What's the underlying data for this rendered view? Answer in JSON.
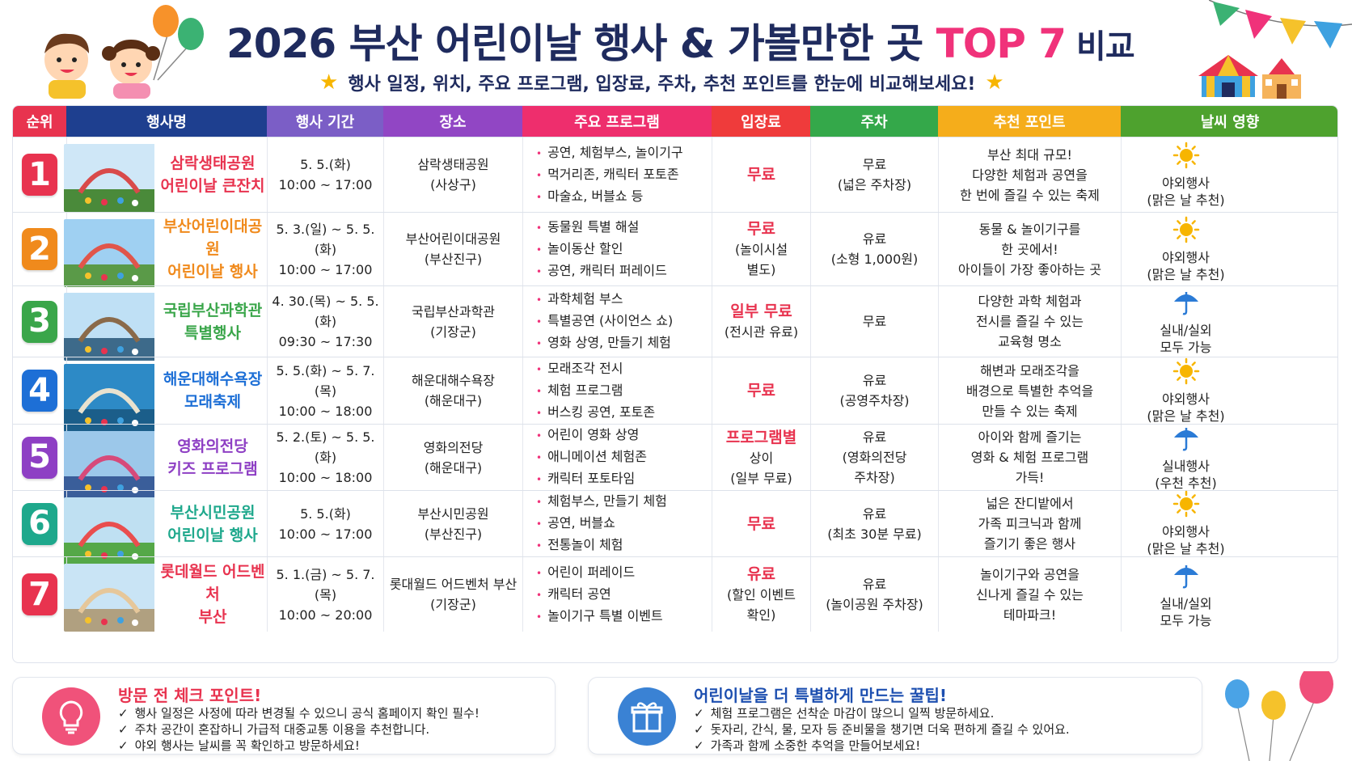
{
  "header": {
    "title_main": "2026 부산 어린이날 행사 & 가볼만한 곳 ",
    "title_accent": "TOP 7",
    "title_tail": " 비교",
    "subtitle": "행사 일정, 위치, 주요 프로그램, 입장료, 주차, 추천 포인트를 한눈에 비교해보세요!",
    "star_icon": "star-icon"
  },
  "columns": [
    {
      "label": "순위",
      "color": "#e8334f"
    },
    {
      "label": "행사명",
      "color": "#1e3f8f"
    },
    {
      "label": "행사 기간",
      "color": "#7b5ec6"
    },
    {
      "label": "장소",
      "color": "#9146c4"
    },
    {
      "label": "주요 프로그램",
      "color": "#ee2e6d"
    },
    {
      "label": "입장료",
      "color": "#ef3b3b"
    },
    {
      "label": "주차",
      "color": "#34a84a"
    },
    {
      "label": "추천 포인트",
      "color": "#f5ad1b"
    },
    {
      "label": "날씨 영향",
      "color": "#4ea22e"
    }
  ],
  "rows": [
    {
      "rank": "1",
      "rank_color": "#e8334f",
      "name1": "삼락생태공원",
      "name2": "어린이날 큰잔치",
      "name_color": "#e8334f",
      "period1": "5. 5.(화)",
      "period2": "10:00 ~ 17:00",
      "place1": "삼락생태공원",
      "place2": "(사상구)",
      "programs": [
        "공연, 체험부스, 놀이기구",
        "먹거리존, 캐릭터 포토존",
        "마술쇼, 버블쇼 등"
      ],
      "fee1": "무료",
      "fee2": "",
      "fee3": "",
      "parking1": "무료",
      "parking2": "(넓은 주차장)",
      "parking3": "",
      "point1": "부산 최대 규모!",
      "point2": "다양한 체험과 공연을",
      "point3": "한 번에 즐길 수 있는 축제",
      "weather_icon": "sun-icon",
      "weather1": "야외행사",
      "weather2": "(맑은 날 추천)"
    },
    {
      "rank": "2",
      "rank_color": "#f08a1c",
      "name1": "부산어린이대공원",
      "name2": "어린이날 행사",
      "name_color": "#f08a1c",
      "period1": "5. 3.(일) ~ 5. 5.(화)",
      "period2": "10:00 ~ 17:00",
      "place1": "부산어린이대공원",
      "place2": "(부산진구)",
      "programs": [
        "동물원 특별 해설",
        "놀이동산 할인",
        "공연, 캐릭터 퍼레이드"
      ],
      "fee1": "무료",
      "fee2": "(놀이시설",
      "fee3": "별도)",
      "parking1": "유료",
      "parking2": "(소형 1,000원)",
      "parking3": "",
      "point1": "동물 & 놀이기구를",
      "point2": "한 곳에서!",
      "point3": "아이들이 가장 좋아하는 곳",
      "weather_icon": "sun-icon",
      "weather1": "야외행사",
      "weather2": "(맑은 날 추천)"
    },
    {
      "rank": "3",
      "rank_color": "#3aa64a",
      "name1": "국립부산과학관",
      "name2": "특별행사",
      "name_color": "#3aa64a",
      "period1": "4. 30.(목) ~ 5. 5.(화)",
      "period2": "09:30 ~ 17:30",
      "place1": "국립부산과학관",
      "place2": "(기장군)",
      "programs": [
        "과학체험 부스",
        "특별공연 (사이언스 쇼)",
        "영화 상영, 만들기 체험"
      ],
      "fee1": "일부 무료",
      "fee2": "(전시관 유료)",
      "fee3": "",
      "parking1": "무료",
      "parking2": "",
      "parking3": "",
      "point1": "다양한 과학 체험과",
      "point2": "전시를 즐길 수 있는",
      "point3": "교육형 명소",
      "weather_icon": "umbrella-icon",
      "weather1": "실내/실외",
      "weather2": "모두 가능"
    },
    {
      "rank": "4",
      "rank_color": "#1d6fd6",
      "name1": "해운대해수욕장",
      "name2": "모래축제",
      "name_color": "#1d6fd6",
      "period1": "5. 5.(화) ~ 5. 7.(목)",
      "period2": "10:00 ~ 18:00",
      "place1": "해운대해수욕장",
      "place2": "(해운대구)",
      "programs": [
        "모래조각 전시",
        "체험 프로그램",
        "버스킹 공연, 포토존"
      ],
      "fee1": "무료",
      "fee2": "",
      "fee3": "",
      "parking1": "유료",
      "parking2": "(공영주차장)",
      "parking3": "",
      "point1": "해변과 모래조각을",
      "point2": "배경으로 특별한 추억을",
      "point3": "만들 수 있는 축제",
      "weather_icon": "sun-icon",
      "weather1": "야외행사",
      "weather2": "(맑은 날 추천)"
    },
    {
      "rank": "5",
      "rank_color": "#8e3fc4",
      "name1": "영화의전당",
      "name2": "키즈 프로그램",
      "name_color": "#8e3fc4",
      "period1": "5. 2.(토) ~ 5. 5.(화)",
      "period2": "10:00 ~ 18:00",
      "place1": "영화의전당",
      "place2": "(해운대구)",
      "programs": [
        "어린이 영화 상영",
        "애니메이션 체험존",
        "캐릭터 포토타임"
      ],
      "fee1": "프로그램별",
      "fee2": "상이",
      "fee3": "(일부 무료)",
      "parking1": "유료",
      "parking2": "(영화의전당",
      "parking3": "주차장)",
      "point1": "아이와 함께 즐기는",
      "point2": "영화 & 체험 프로그램",
      "point3": "가득!",
      "weather_icon": "umbrella-icon",
      "weather1": "실내행사",
      "weather2": "(우천 추천)"
    },
    {
      "rank": "6",
      "rank_color": "#1ea88c",
      "name1": "부산시민공원",
      "name2": "어린이날 행사",
      "name_color": "#1ea88c",
      "period1": "5. 5.(화)",
      "period2": "10:00 ~ 17:00",
      "place1": "부산시민공원",
      "place2": "(부산진구)",
      "programs": [
        "체험부스, 만들기 체험",
        "공연, 버블쇼",
        "전통놀이 체험"
      ],
      "fee1": "무료",
      "fee2": "",
      "fee3": "",
      "parking1": "유료",
      "parking2": "(최초 30분 무료)",
      "parking3": "",
      "point1": "넓은 잔디밭에서",
      "point2": "가족 피크닉과 함께",
      "point3": "즐기기 좋은 행사",
      "weather_icon": "sun-icon",
      "weather1": "야외행사",
      "weather2": "(맑은 날 추천)"
    },
    {
      "rank": "7",
      "rank_color": "#e8334f",
      "name1": "롯데월드 어드벤처",
      "name2": "부산",
      "name_color": "#e8334f",
      "period1": "5. 1.(금) ~ 5. 7.(목)",
      "period2": "10:00 ~ 20:00",
      "place1": "롯대월드 어드벤처 부산",
      "place2": "(기장군)",
      "programs": [
        "어린이 퍼레이드",
        "캐릭터 공연",
        "놀이기구 특별 이벤트"
      ],
      "fee1": "유료",
      "fee2": "(할인 이벤트",
      "fee3": "확인)",
      "parking1": "유료",
      "parking2": "(놀이공원 주차장)",
      "parking3": "",
      "point1": "놀이기구와 공연을",
      "point2": "신나게 즐길 수 있는",
      "point3": "테마파크!",
      "weather_icon": "umbrella-icon",
      "weather1": "실내/실외",
      "weather2": "모두 가능"
    }
  ],
  "tips_left": {
    "title": "방문 전 체크 포인트!",
    "icon": "lightbulb-icon",
    "items": [
      "행사 일정은 사정에 따라 변경될 수 있으니 공식 홈페이지 확인 필수!",
      "주차 공간이 혼잡하니 가급적 대중교통 이용을 추천합니다.",
      "야외 행사는 날씨를 꼭 확인하고 방문하세요!"
    ]
  },
  "tips_right": {
    "title": "어린이날을 더 특별하게 만드는 꿀팁!",
    "icon": "gift-icon",
    "items": [
      "체험 프로그램은 선착순 마감이 많으니 일찍 방문하세요.",
      "돗자리, 간식, 물, 모자 등 준비물을 챙기면 더욱 편하게 즐길 수 있어요.",
      "가족과 함께 소중한 추억을 만들어보세요!"
    ]
  }
}
